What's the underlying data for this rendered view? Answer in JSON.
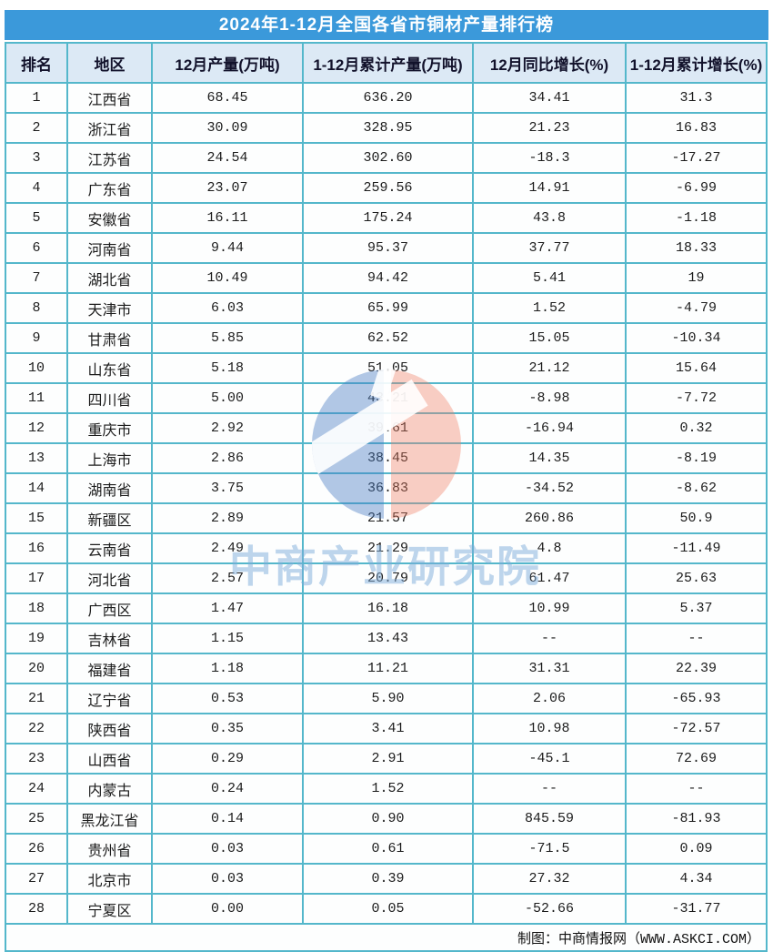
{
  "chart_data": {
    "type": "table",
    "title": "2024年1-12月全国各省市铜材产量排行榜",
    "columns": [
      "排名",
      "地区",
      "12月产量(万吨)",
      "1-12月累计产量(万吨)",
      "12月同比增长(%)",
      "1-12月累计增长(%)"
    ],
    "rows": [
      [
        "1",
        "江西省",
        "68.45",
        "636.20",
        "34.41",
        "31.3"
      ],
      [
        "2",
        "浙江省",
        "30.09",
        "328.95",
        "21.23",
        "16.83"
      ],
      [
        "3",
        "江苏省",
        "24.54",
        "302.60",
        "-18.3",
        "-17.27"
      ],
      [
        "4",
        "广东省",
        "23.07",
        "259.56",
        "14.91",
        "-6.99"
      ],
      [
        "5",
        "安徽省",
        "16.11",
        "175.24",
        "43.8",
        "-1.18"
      ],
      [
        "6",
        "河南省",
        "9.44",
        "95.37",
        "37.77",
        "18.33"
      ],
      [
        "7",
        "湖北省",
        "10.49",
        "94.42",
        "5.41",
        "19"
      ],
      [
        "8",
        "天津市",
        "6.03",
        "65.99",
        "1.52",
        "-4.79"
      ],
      [
        "9",
        "甘肃省",
        "5.85",
        "62.52",
        "15.05",
        "-10.34"
      ],
      [
        "10",
        "山东省",
        "5.18",
        "51.05",
        "21.12",
        "15.64"
      ],
      [
        "11",
        "四川省",
        "5.00",
        "43.21",
        "-8.98",
        "-7.72"
      ],
      [
        "12",
        "重庆市",
        "2.92",
        "39.61",
        "-16.94",
        "0.32"
      ],
      [
        "13",
        "上海市",
        "2.86",
        "38.45",
        "14.35",
        "-8.19"
      ],
      [
        "14",
        "湖南省",
        "3.75",
        "36.83",
        "-34.52",
        "-8.62"
      ],
      [
        "15",
        "新疆区",
        "2.89",
        "21.57",
        "260.86",
        "50.9"
      ],
      [
        "16",
        "云南省",
        "2.49",
        "21.29",
        "4.8",
        "-11.49"
      ],
      [
        "17",
        "河北省",
        "2.57",
        "20.79",
        "61.47",
        "25.63"
      ],
      [
        "18",
        "广西区",
        "1.47",
        "16.18",
        "10.99",
        "5.37"
      ],
      [
        "19",
        "吉林省",
        "1.15",
        "13.43",
        "--",
        "--"
      ],
      [
        "20",
        "福建省",
        "1.18",
        "11.21",
        "31.31",
        "22.39"
      ],
      [
        "21",
        "辽宁省",
        "0.53",
        "5.90",
        "2.06",
        "-65.93"
      ],
      [
        "22",
        "陕西省",
        "0.35",
        "3.41",
        "10.98",
        "-72.57"
      ],
      [
        "23",
        "山西省",
        "0.29",
        "2.91",
        "-45.1",
        "72.69"
      ],
      [
        "24",
        "内蒙古",
        "0.24",
        "1.52",
        "--",
        "--"
      ],
      [
        "25",
        "黑龙江省",
        "0.14",
        "0.90",
        "845.59",
        "-81.93"
      ],
      [
        "26",
        "贵州省",
        "0.03",
        "0.61",
        "-71.5",
        "0.09"
      ],
      [
        "27",
        "北京市",
        "0.03",
        "0.39",
        "27.32",
        "4.34"
      ],
      [
        "28",
        "宁夏区",
        "0.00",
        "0.05",
        "-52.66",
        "-31.77"
      ]
    ],
    "layout": {
      "grid": "on",
      "border_color": "#54B7CB",
      "header_bg": "#DCE9F5",
      "title_bg": "#3B99DA",
      "title_color": "#FFFFFF"
    }
  },
  "watermark": {
    "text": "中商产业研究院",
    "logo_blue": "#487DC3",
    "logo_red": "#EE7D64"
  },
  "footer": {
    "credit": "制图：中商情报网（WWW.ASKCI.COM）"
  }
}
